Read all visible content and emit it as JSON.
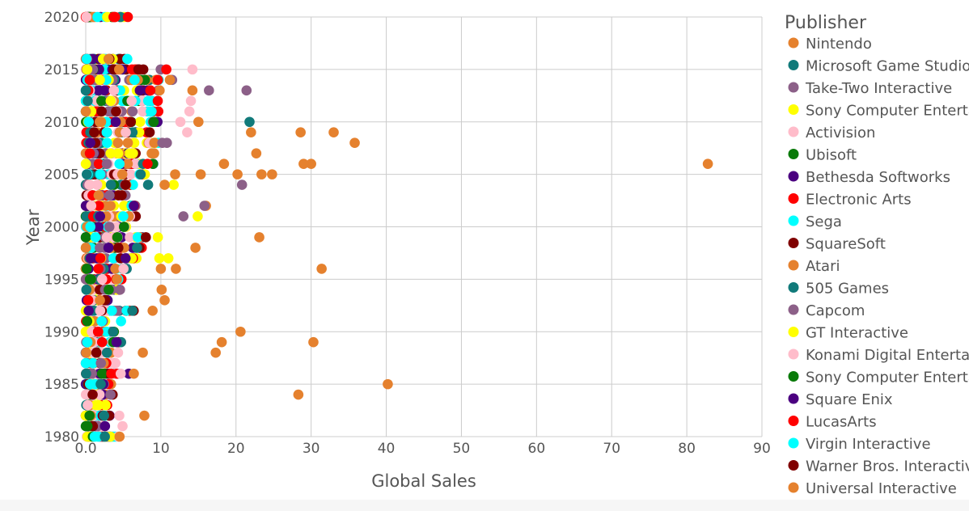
{
  "chart_data": {
    "type": "scatter",
    "xlabel": "Global Sales",
    "ylabel": "Year",
    "xlim": [
      0,
      90
    ],
    "ylim": [
      1980,
      2020
    ],
    "x_ticks": [
      "0.0",
      "10",
      "20",
      "30",
      "40",
      "50",
      "60",
      "70",
      "80",
      "90"
    ],
    "y_ticks": [
      "1980",
      "1985",
      "1990",
      "1995",
      "2000",
      "2005",
      "2010",
      "2015",
      "2020"
    ],
    "grid": true,
    "legend_position": "right",
    "legend_title": "Publisher",
    "legend": [
      {
        "name": "Nintendo",
        "color": "#e5812e"
      },
      {
        "name": "Microsoft Game Studios",
        "color": "#117a7a"
      },
      {
        "name": "Take-Two Interactive",
        "color": "#8c6088"
      },
      {
        "name": "Sony Computer Entertainment",
        "color": "#ffff00"
      },
      {
        "name": "Activision",
        "color": "#ffbcca"
      },
      {
        "name": "Ubisoft",
        "color": "#0a7a0a"
      },
      {
        "name": "Bethesda Softworks",
        "color": "#4b0080"
      },
      {
        "name": "Electronic Arts",
        "color": "#ff0000"
      },
      {
        "name": "Sega",
        "color": "#00ffff"
      },
      {
        "name": "SquareSoft",
        "color": "#800000"
      },
      {
        "name": "Atari",
        "color": "#e5812e"
      },
      {
        "name": "505 Games",
        "color": "#117a7a"
      },
      {
        "name": "Capcom",
        "color": "#8c6088"
      },
      {
        "name": "GT Interactive",
        "color": "#ffff00"
      },
      {
        "name": "Konami Digital Entertainment",
        "color": "#ffbcca"
      },
      {
        "name": "Sony Computer Entertainment Europe",
        "color": "#0a7a0a"
      },
      {
        "name": "Square Enix",
        "color": "#4b0080"
      },
      {
        "name": "LucasArts",
        "color": "#ff0000"
      },
      {
        "name": "Virgin Interactive",
        "color": "#00ffff"
      },
      {
        "name": "Warner Bros. Interactive Entertainment",
        "color": "#800000"
      },
      {
        "name": "Universal Interactive",
        "color": "#e5812e"
      }
    ],
    "cluster": {
      "palette": [
        "#e5812e",
        "#117a7a",
        "#8c6088",
        "#ffff00",
        "#ffbcca",
        "#0a7a0a",
        "#4b0080",
        "#ff0000",
        "#00ffff",
        "#800000"
      ],
      "years": [
        1980,
        1981,
        1982,
        1983,
        1984,
        1985,
        1986,
        1987,
        1988,
        1989,
        1990,
        1991,
        1992,
        1993,
        1994,
        1995,
        1996,
        1997,
        1998,
        1999,
        2000,
        2001,
        2002,
        2003,
        2004,
        2005,
        2006,
        2007,
        2008,
        2009,
        2010,
        2011,
        2012,
        2013,
        2014,
        2015,
        2016,
        2020
      ],
      "max_sales": [
        4.5,
        3,
        4.5,
        3,
        4,
        3.5,
        6,
        4,
        4,
        5,
        4,
        3,
        6.5,
        3,
        5,
        5,
        6.5,
        7,
        7.5,
        8,
        6,
        7,
        7,
        6,
        7,
        8,
        9,
        9,
        10,
        9,
        10,
        10,
        10,
        10,
        10,
        11,
        6,
        5.5
      ]
    },
    "points": [
      {
        "x": 82.8,
        "y": 2006,
        "color": "#e5812e"
      },
      {
        "x": 40.2,
        "y": 1985,
        "color": "#e5812e"
      },
      {
        "x": 35.8,
        "y": 2008,
        "color": "#e5812e"
      },
      {
        "x": 33.0,
        "y": 2009,
        "color": "#e5812e"
      },
      {
        "x": 31.4,
        "y": 1996,
        "color": "#e5812e"
      },
      {
        "x": 30.3,
        "y": 1989,
        "color": "#e5812e"
      },
      {
        "x": 30.0,
        "y": 2006,
        "color": "#e5812e"
      },
      {
        "x": 29.0,
        "y": 2006,
        "color": "#e5812e"
      },
      {
        "x": 28.6,
        "y": 2009,
        "color": "#e5812e"
      },
      {
        "x": 28.3,
        "y": 1984,
        "color": "#e5812e"
      },
      {
        "x": 24.8,
        "y": 2005,
        "color": "#e5812e"
      },
      {
        "x": 23.4,
        "y": 2005,
        "color": "#e5812e"
      },
      {
        "x": 23.1,
        "y": 1999,
        "color": "#e5812e"
      },
      {
        "x": 22.7,
        "y": 2007,
        "color": "#e5812e"
      },
      {
        "x": 22.0,
        "y": 2009,
        "color": "#e5812e"
      },
      {
        "x": 21.8,
        "y": 2010,
        "color": "#117a7a"
      },
      {
        "x": 21.4,
        "y": 2013,
        "color": "#8c6088"
      },
      {
        "x": 20.8,
        "y": 2004,
        "color": "#8c6088"
      },
      {
        "x": 20.6,
        "y": 1990,
        "color": "#e5812e"
      },
      {
        "x": 20.2,
        "y": 2005,
        "color": "#e5812e"
      },
      {
        "x": 18.4,
        "y": 2006,
        "color": "#e5812e"
      },
      {
        "x": 18.1,
        "y": 1989,
        "color": "#e5812e"
      },
      {
        "x": 17.3,
        "y": 1988,
        "color": "#e5812e"
      },
      {
        "x": 16.4,
        "y": 2013,
        "color": "#8c6088"
      },
      {
        "x": 16.0,
        "y": 2002,
        "color": "#e5812e"
      },
      {
        "x": 15.8,
        "y": 2002,
        "color": "#8c6088"
      },
      {
        "x": 15.3,
        "y": 2005,
        "color": "#e5812e"
      },
      {
        "x": 15.0,
        "y": 2010,
        "color": "#e5812e"
      },
      {
        "x": 14.9,
        "y": 2001,
        "color": "#ffff00"
      },
      {
        "x": 14.6,
        "y": 1998,
        "color": "#e5812e"
      },
      {
        "x": 14.2,
        "y": 2013,
        "color": "#e5812e"
      },
      {
        "x": 14.2,
        "y": 2015,
        "color": "#ffbcca"
      },
      {
        "x": 14.0,
        "y": 2012,
        "color": "#ffbcca"
      },
      {
        "x": 13.8,
        "y": 2011,
        "color": "#ffbcca"
      },
      {
        "x": 13.5,
        "y": 2009,
        "color": "#ffbcca"
      },
      {
        "x": 13.0,
        "y": 2001,
        "color": "#8c6088"
      },
      {
        "x": 12.6,
        "y": 2010,
        "color": "#ffbcca"
      },
      {
        "x": 12.0,
        "y": 1996,
        "color": "#e5812e"
      },
      {
        "x": 11.9,
        "y": 2005,
        "color": "#e5812e"
      },
      {
        "x": 11.7,
        "y": 2004,
        "color": "#ffff00"
      },
      {
        "x": 11.5,
        "y": 2014,
        "color": "#8c6088"
      },
      {
        "x": 11.2,
        "y": 2014,
        "color": "#e5812e"
      },
      {
        "x": 11.0,
        "y": 1997,
        "color": "#ffff00"
      },
      {
        "x": 10.8,
        "y": 2008,
        "color": "#8c6088"
      },
      {
        "x": 10.5,
        "y": 2004,
        "color": "#e5812e"
      },
      {
        "x": 10.5,
        "y": 1993,
        "color": "#e5812e"
      },
      {
        "x": 10.2,
        "y": 2008,
        "color": "#8c6088"
      },
      {
        "x": 10.1,
        "y": 1994,
        "color": "#e5812e"
      },
      {
        "x": 10.0,
        "y": 1996,
        "color": "#e5812e"
      },
      {
        "x": 9.8,
        "y": 1997,
        "color": "#ffff00"
      },
      {
        "x": 9.6,
        "y": 1999,
        "color": "#ffff00"
      },
      {
        "x": 9.1,
        "y": 2007,
        "color": "#e5812e"
      },
      {
        "x": 8.9,
        "y": 1992,
        "color": "#e5812e"
      },
      {
        "x": 8.6,
        "y": 2013,
        "color": "#ff0000"
      },
      {
        "x": 8.3,
        "y": 2004,
        "color": "#117a7a"
      },
      {
        "x": 8.0,
        "y": 1999,
        "color": "#800000"
      },
      {
        "x": 7.8,
        "y": 1982,
        "color": "#e5812e"
      },
      {
        "x": 7.6,
        "y": 1988,
        "color": "#e5812e"
      },
      {
        "x": 7.2,
        "y": 2013,
        "color": "#4b0080"
      },
      {
        "x": 6.4,
        "y": 1986,
        "color": "#e5812e"
      },
      {
        "x": 5.6,
        "y": 2020,
        "color": "#ff0000"
      },
      {
        "x": 4.9,
        "y": 1981,
        "color": "#ffbcca"
      },
      {
        "x": 4.5,
        "y": 1980,
        "color": "#e5812e"
      },
      {
        "x": 4.1,
        "y": 1989,
        "color": "#4b0080"
      },
      {
        "x": 4.3,
        "y": 1988,
        "color": "#ffbcca"
      },
      {
        "x": 3.9,
        "y": 2020,
        "color": "#ff0000"
      },
      {
        "x": 4.7,
        "y": 1991,
        "color": "#00ffff"
      },
      {
        "x": 6.2,
        "y": 1992,
        "color": "#117a7a"
      }
    ]
  }
}
